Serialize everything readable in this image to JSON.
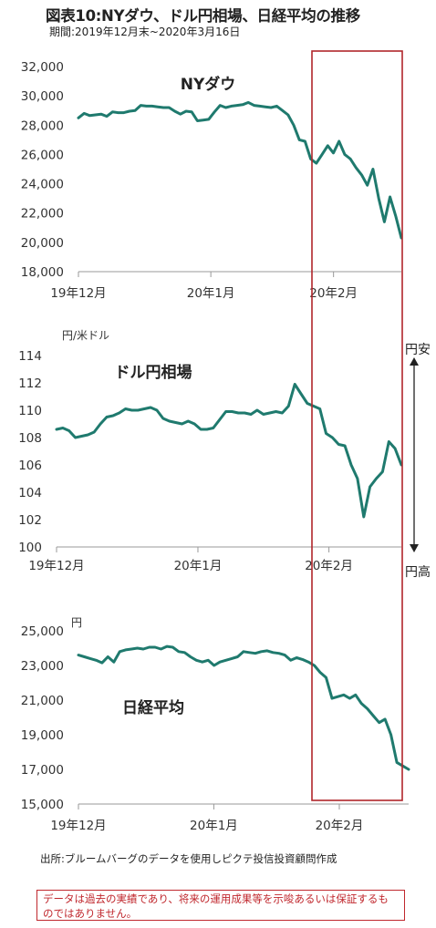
{
  "title": "図表10:NYダウ、ドル円相場、日経平均の推移",
  "subtitle": "期間:2019年12月末~2020年3月16日",
  "colors": {
    "line": "#1f7a6e",
    "highlight_box": "#b0262b",
    "disclaimer": "#c0272d",
    "axis": "#999999"
  },
  "x_tick_labels": [
    "19年12月",
    "20年1月",
    "20年2月"
  ],
  "chart_data": [
    {
      "type": "line",
      "title": "NYダウ",
      "ylabel": "",
      "ylim": [
        18000,
        32000
      ],
      "yticks": [
        "18,000",
        "20,000",
        "22,000",
        "24,000",
        "26,000",
        "28,000",
        "30,000",
        "32,000"
      ],
      "x_labels": [
        "19年12月",
        "20年1月",
        "20年2月"
      ],
      "series": [
        {
          "values": [
            28500,
            28800,
            28650,
            28700,
            28750,
            28600,
            28900,
            28850,
            28850,
            28950,
            29000,
            29350,
            29300,
            29300,
            29250,
            29200,
            29200,
            28950,
            28750,
            28950,
            28900,
            28300,
            28350,
            28400,
            28900,
            29350,
            29200,
            29300,
            29350,
            29400,
            29550,
            29350,
            29300,
            29250,
            29200,
            29300,
            29000,
            28700,
            28000,
            27000,
            26900,
            25700,
            25400,
            26000,
            26600,
            26100,
            26900,
            26000,
            25700,
            25100,
            24600,
            23900,
            25000,
            23000,
            21400,
            23100,
            21800,
            20300
          ]
        }
      ]
    },
    {
      "type": "line",
      "title": "ドル円相場",
      "ylabel": "円/米ドル",
      "ylim": [
        100,
        114
      ],
      "yticks": [
        "100",
        "102",
        "104",
        "106",
        "108",
        "110",
        "112",
        "114"
      ],
      "x_labels": [
        "19年12月",
        "20年1月",
        "20年2月"
      ],
      "annotations": {
        "up": "円安",
        "down": "円高"
      },
      "series": [
        {
          "values": [
            108.6,
            108.7,
            108.5,
            108.0,
            108.1,
            108.2,
            108.4,
            109.0,
            109.5,
            109.6,
            109.8,
            110.1,
            110.0,
            110.0,
            110.1,
            110.2,
            110.0,
            109.4,
            109.2,
            109.1,
            109.0,
            109.2,
            109.0,
            108.6,
            108.6,
            108.7,
            109.3,
            109.9,
            109.9,
            109.8,
            109.8,
            109.7,
            110.0,
            109.7,
            109.8,
            109.9,
            109.8,
            110.3,
            111.9,
            111.2,
            110.5,
            110.3,
            110.1,
            108.3,
            108.0,
            107.5,
            107.4,
            106.0,
            105.0,
            102.2,
            104.4,
            105.0,
            105.5,
            107.7,
            107.2,
            106.0
          ]
        }
      ]
    },
    {
      "type": "line",
      "title": "日経平均",
      "ylabel": "円",
      "ylim": [
        15000,
        25000
      ],
      "yticks": [
        "15,000",
        "17,000",
        "19,000",
        "21,000",
        "23,000",
        "25,000"
      ],
      "x_labels": [
        "19年12月",
        "20年1月",
        "20年2月"
      ],
      "series": [
        {
          "values": [
            23600,
            23500,
            23400,
            23300,
            23150,
            23500,
            23200,
            23800,
            23900,
            23950,
            24000,
            23950,
            24050,
            24050,
            23950,
            24100,
            24050,
            23800,
            23750,
            23500,
            23300,
            23200,
            23300,
            23000,
            23200,
            23300,
            23400,
            23500,
            23800,
            23750,
            23700,
            23800,
            23850,
            23750,
            23700,
            23600,
            23300,
            23450,
            23350,
            23200,
            23000,
            22600,
            22300,
            21100,
            21200,
            21300,
            21100,
            21300,
            20800,
            20500,
            20100,
            19700,
            19900,
            19000,
            17400,
            17200,
            17000
          ]
        }
      ]
    }
  ],
  "source": "出所:ブルームバーグのデータを使用しピクテ投信投資顧問作成",
  "disclaimer": "データは過去の実績であり、将来の運用成果等を示唆あるいは保証するものではありません。"
}
